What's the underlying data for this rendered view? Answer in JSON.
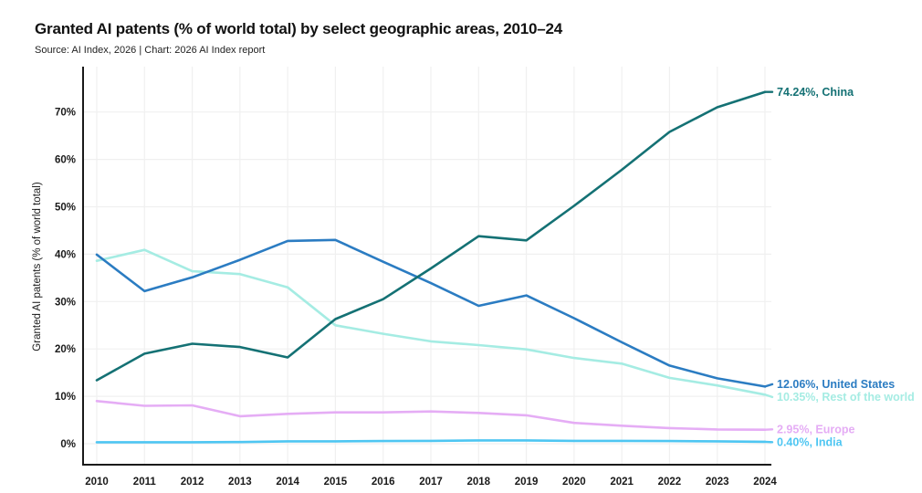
{
  "chart_data": {
    "type": "line",
    "title": "Granted AI patents (% of world total) by select geographic areas, 2010–24",
    "source": "Source: AI Index, 2026 | Chart: 2026 AI Index report",
    "xlabel": "",
    "ylabel": "Granted AI patents (% of world total)",
    "x": [
      2010,
      2011,
      2012,
      2013,
      2014,
      2015,
      2016,
      2017,
      2018,
      2019,
      2020,
      2021,
      2022,
      2023,
      2024
    ],
    "x_tick_labels": [
      "2010",
      "2011",
      "2012",
      "2013",
      "2014",
      "2015",
      "2016",
      "2017",
      "2018",
      "2019",
      "2020",
      "2021",
      "2022",
      "2023",
      "2024"
    ],
    "y_ticks": [
      0,
      10,
      20,
      30,
      40,
      50,
      60,
      70
    ],
    "y_tick_labels": [
      "0%",
      "10%",
      "20%",
      "30%",
      "40%",
      "50%",
      "60%",
      "70%"
    ],
    "ylim": [
      0,
      80
    ],
    "grid": true,
    "legend_position": "end-of-line-labels",
    "series": [
      {
        "name": "China",
        "color": "#147174",
        "end_label": "74.24%, China",
        "values": [
          13.4,
          19.0,
          21.1,
          20.4,
          18.2,
          26.3,
          30.5,
          37.0,
          43.8,
          42.9,
          50.2,
          57.8,
          65.8,
          71.0,
          74.24
        ]
      },
      {
        "name": "United States",
        "color": "#2b7cc2",
        "end_label": "12.06%, United States",
        "values": [
          39.9,
          32.2,
          35.1,
          38.8,
          42.8,
          43.0,
          38.4,
          33.9,
          29.1,
          31.3,
          26.5,
          21.4,
          16.5,
          13.8,
          12.06
        ]
      },
      {
        "name": "Rest of the world",
        "color": "#a5ece3",
        "end_label": "10.35%, Rest of the world",
        "values": [
          38.6,
          40.9,
          36.4,
          35.8,
          33.0,
          25.0,
          23.2,
          21.6,
          20.8,
          19.9,
          18.1,
          16.9,
          13.9,
          12.3,
          10.35
        ]
      },
      {
        "name": "Europe",
        "color": "#e5adf5",
        "end_label": "2.95%, Europe",
        "values": [
          9.0,
          8.0,
          8.1,
          5.8,
          6.3,
          6.6,
          6.6,
          6.8,
          6.5,
          6.0,
          4.4,
          3.8,
          3.3,
          3.0,
          2.95
        ]
      },
      {
        "name": "India",
        "color": "#4ec6f2",
        "end_label": "0.40%, India",
        "values": [
          0.3,
          0.3,
          0.3,
          0.35,
          0.5,
          0.5,
          0.55,
          0.6,
          0.7,
          0.7,
          0.6,
          0.6,
          0.55,
          0.5,
          0.4
        ]
      }
    ]
  },
  "colors": {
    "axis": "#1a1a1a",
    "grid": "#f0f0f0",
    "title_text": "#111111",
    "tick_text": "#1a1a1a"
  }
}
